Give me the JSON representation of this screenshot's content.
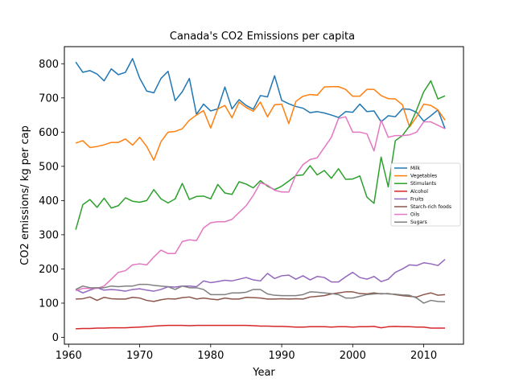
{
  "chart_data": {
    "type": "line",
    "title": "Canada's CO2 Emissions per capita",
    "xlabel": "Year",
    "ylabel": "CO2 emissions/ kg per cap",
    "xlim": [
      1959.4,
      2015.6
    ],
    "ylim": [
      -20,
      850
    ],
    "xticks": [
      1960,
      1970,
      1980,
      1990,
      2000,
      2010
    ],
    "yticks": [
      0,
      100,
      200,
      300,
      400,
      500,
      600,
      700,
      800
    ],
    "grid": false,
    "legend_position": "right",
    "x": [
      1961,
      1962,
      1963,
      1964,
      1965,
      1966,
      1967,
      1968,
      1969,
      1970,
      1971,
      1972,
      1973,
      1974,
      1975,
      1976,
      1977,
      1978,
      1979,
      1980,
      1981,
      1982,
      1983,
      1984,
      1985,
      1986,
      1987,
      1988,
      1989,
      1990,
      1991,
      1992,
      1993,
      1994,
      1995,
      1996,
      1997,
      1998,
      1999,
      2000,
      2001,
      2002,
      2003,
      2004,
      2005,
      2006,
      2007,
      2008,
      2009,
      2010,
      2011,
      2012,
      2013
    ],
    "series": [
      {
        "name": "Milk",
        "color": "#1f77b4",
        "values": [
          805,
          775,
          780,
          770,
          750,
          785,
          768,
          775,
          815,
          758,
          720,
          715,
          757,
          778,
          692,
          718,
          757,
          652,
          682,
          662,
          668,
          732,
          668,
          695,
          678,
          667,
          707,
          703,
          765,
          693,
          683,
          675,
          670,
          657,
          660,
          656,
          650,
          643,
          660,
          658,
          682,
          660,
          662,
          630,
          648,
          645,
          668,
          667,
          658,
          632,
          648,
          665,
          610
        ]
      },
      {
        "name": "Vegetables",
        "color": "#ff7f0e",
        "values": [
          568,
          575,
          555,
          558,
          563,
          570,
          570,
          580,
          562,
          585,
          558,
          518,
          572,
          600,
          602,
          610,
          635,
          650,
          663,
          612,
          668,
          678,
          642,
          688,
          672,
          661,
          688,
          645,
          680,
          682,
          625,
          690,
          705,
          710,
          708,
          732,
          733,
          733,
          725,
          705,
          705,
          725,
          725,
          707,
          698,
          697,
          680,
          615,
          645,
          682,
          678,
          665,
          635
        ]
      },
      {
        "name": "Stimulants",
        "color": "#2ca02c",
        "values": [
          315,
          388,
          403,
          380,
          407,
          378,
          385,
          408,
          398,
          395,
          400,
          432,
          405,
          393,
          405,
          450,
          403,
          412,
          413,
          405,
          447,
          422,
          418,
          455,
          448,
          437,
          458,
          442,
          432,
          442,
          457,
          473,
          475,
          502,
          475,
          488,
          465,
          493,
          462,
          463,
          472,
          410,
          392,
          527,
          440,
          575,
          590,
          618,
          665,
          718,
          750,
          697,
          706
        ]
      },
      {
        "name": "Alcohol",
        "color": "#d62728",
        "values": [
          25,
          26,
          26,
          27,
          27,
          28,
          28,
          28,
          29,
          30,
          31,
          33,
          34,
          35,
          35,
          35,
          34,
          35,
          35,
          35,
          35,
          35,
          35,
          35,
          35,
          34,
          33,
          33,
          32,
          32,
          31,
          30,
          30,
          31,
          31,
          31,
          30,
          31,
          31,
          30,
          31,
          31,
          32,
          28,
          31,
          32,
          31,
          31,
          30,
          30,
          27,
          27,
          27
        ]
      },
      {
        "name": "Fruits",
        "color": "#9467bd",
        "values": [
          140,
          130,
          138,
          145,
          138,
          140,
          138,
          135,
          140,
          142,
          138,
          135,
          140,
          148,
          147,
          150,
          150,
          148,
          165,
          160,
          163,
          167,
          165,
          170,
          175,
          168,
          165,
          187,
          172,
          180,
          182,
          170,
          180,
          168,
          178,
          175,
          162,
          162,
          177,
          190,
          175,
          170,
          178,
          163,
          170,
          190,
          200,
          212,
          210,
          218,
          215,
          210,
          228
        ]
      },
      {
        "name": "Starch-rich foods",
        "color": "#8c564b",
        "values": [
          112,
          113,
          118,
          108,
          117,
          113,
          112,
          112,
          117,
          115,
          108,
          105,
          110,
          113,
          112,
          116,
          118,
          112,
          115,
          112,
          110,
          115,
          112,
          112,
          117,
          116,
          115,
          112,
          112,
          113,
          112,
          113,
          112,
          118,
          120,
          122,
          127,
          130,
          133,
          133,
          128,
          127,
          130,
          127,
          128,
          125,
          122,
          120,
          118,
          125,
          130,
          123,
          125
        ]
      },
      {
        "name": "Oils",
        "color": "#e377c2",
        "values": [
          137,
          143,
          143,
          143,
          150,
          170,
          190,
          195,
          212,
          215,
          212,
          235,
          255,
          245,
          245,
          280,
          285,
          283,
          320,
          335,
          338,
          338,
          345,
          365,
          385,
          415,
          452,
          445,
          430,
          425,
          425,
          475,
          505,
          520,
          525,
          555,
          585,
          640,
          645,
          600,
          600,
          595,
          545,
          635,
          585,
          590,
          590,
          592,
          600,
          630,
          630,
          620,
          610
        ]
      },
      {
        "name": "Sugars",
        "color": "#7f7f7f",
        "values": [
          140,
          150,
          145,
          145,
          145,
          150,
          148,
          150,
          150,
          155,
          155,
          152,
          150,
          148,
          140,
          150,
          145,
          145,
          140,
          125,
          125,
          125,
          130,
          130,
          132,
          140,
          140,
          127,
          123,
          122,
          122,
          122,
          125,
          133,
          132,
          130,
          128,
          125,
          115,
          115,
          120,
          125,
          127,
          128,
          127,
          126,
          124,
          123,
          115,
          100,
          108,
          105,
          104
        ]
      }
    ]
  }
}
